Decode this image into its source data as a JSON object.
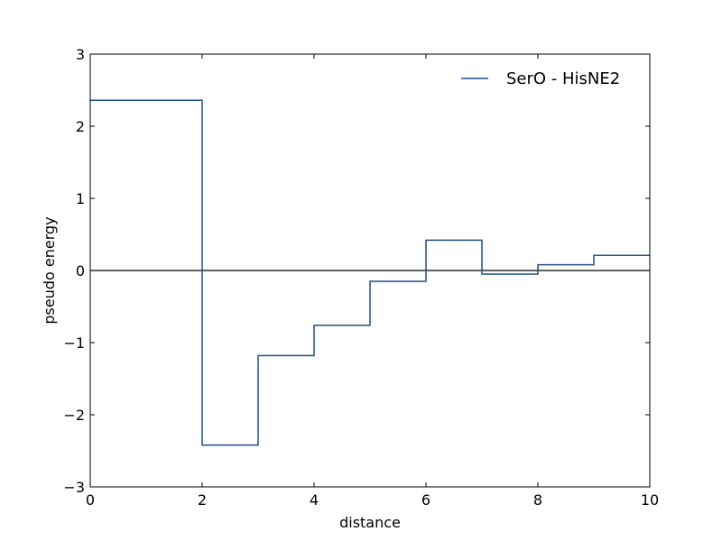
{
  "chart_data": {
    "type": "line",
    "step": "post",
    "title": "",
    "xlabel": "distance",
    "ylabel": "pseudo energy",
    "xlim": [
      0,
      10
    ],
    "ylim": [
      -3,
      3
    ],
    "grid": false,
    "legend_position": "top-right",
    "x_ticks": [
      0,
      2,
      4,
      6,
      8,
      10
    ],
    "x_tick_labels": [
      "0",
      "2",
      "4",
      "6",
      "8",
      "10"
    ],
    "y_ticks": [
      -3,
      -2,
      -1,
      0,
      1,
      2,
      3
    ],
    "y_tick_labels": [
      "−3",
      "−2",
      "−1",
      "0",
      "1",
      "2",
      "3"
    ],
    "reference_line": {
      "y": 0,
      "color": "#000000"
    },
    "series": [
      {
        "name": "SerO - HisNE2",
        "color": "#1f4e8c",
        "x": [
          0,
          2,
          3,
          4,
          5,
          6,
          7,
          8,
          9,
          10
        ],
        "values": [
          2.36,
          -2.42,
          -1.18,
          -0.76,
          -0.15,
          0.42,
          -0.05,
          0.08,
          0.21,
          0.21
        ]
      }
    ]
  }
}
